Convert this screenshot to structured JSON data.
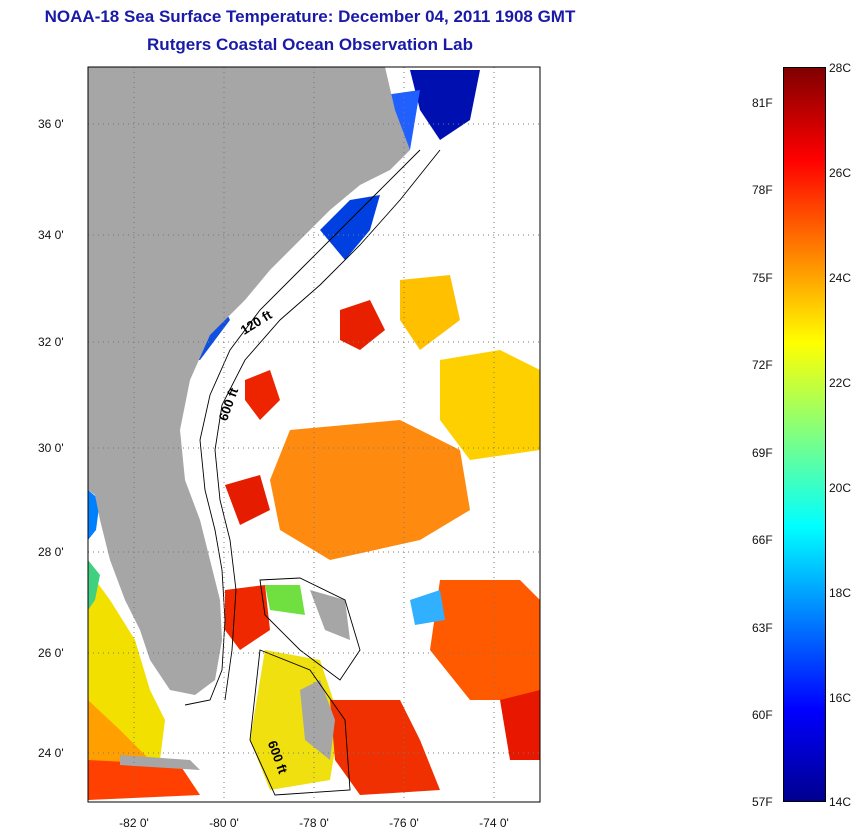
{
  "header": {
    "title": "NOAA-18 Sea Surface Temperature:  December 04, 2011 1908 GMT",
    "subtitle": "Rutgers Coastal Ocean Observation Lab"
  },
  "map": {
    "lat_ticks": [
      "36 0'",
      "34 0'",
      "32 0'",
      "30 0'",
      "28 0'",
      "26 0'",
      "24 0'"
    ],
    "lon_ticks": [
      "-82 0'",
      "-80 0'",
      "-78 0'",
      "-76 0'",
      "-74 0'"
    ],
    "lat_range": [
      23,
      37
    ],
    "lon_range": [
      -83,
      -73
    ],
    "isobath_labels": [
      "120 ft",
      "600 ft",
      "600 ft"
    ],
    "land_color": "#a6a6a6",
    "cloud_color": "#ffffff"
  },
  "colorbar": {
    "fahrenheit_labels": [
      "81F",
      "78F",
      "75F",
      "72F",
      "69F",
      "66F",
      "63F",
      "60F",
      "57F"
    ],
    "celsius_labels": [
      "28C",
      "26C",
      "24C",
      "22C",
      "20C",
      "18C",
      "16C",
      "14C"
    ],
    "range_c": [
      14,
      28
    ],
    "colors": [
      "#00008f",
      "#0000ff",
      "#0080ff",
      "#00ffff",
      "#80ff80",
      "#ffff00",
      "#ff8000",
      "#ff0000",
      "#800000"
    ]
  }
}
